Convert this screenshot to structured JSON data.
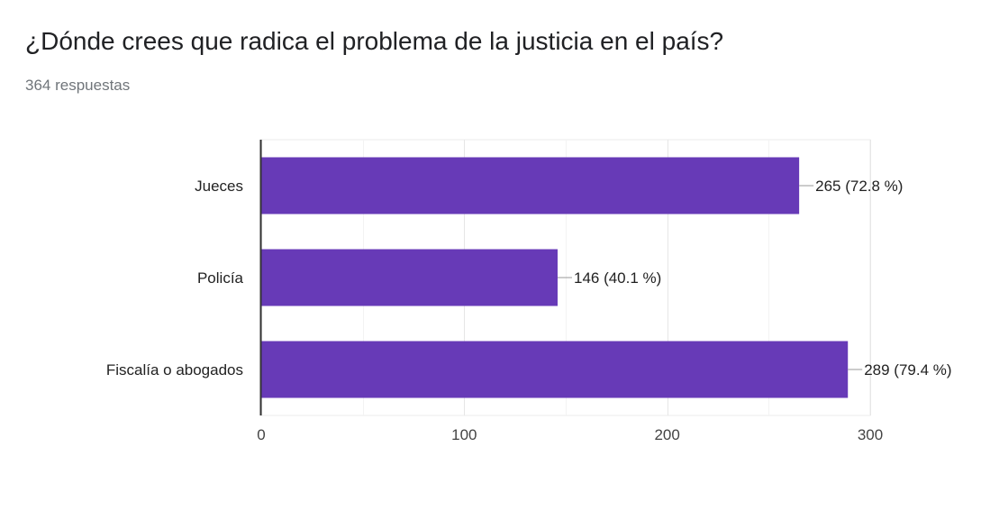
{
  "header": {
    "title": "¿Dónde crees que radica el problema de la justicia en el país?",
    "responses": "364 respuestas"
  },
  "colors": {
    "bar": "#673ab7",
    "grid": "#ebebeb",
    "axis": "#333333",
    "text": "#222222"
  },
  "chart_data": {
    "type": "bar",
    "orientation": "horizontal",
    "categories": [
      "Jueces",
      "Policía",
      "Fiscalía o abogados"
    ],
    "values": [
      265,
      146,
      289
    ],
    "value_labels": [
      "265 (72.8 %)",
      "146 (40.1 %)",
      "289 (79.4 %)"
    ],
    "xlim": [
      0,
      300
    ],
    "xticks": [
      0,
      100,
      200,
      300
    ],
    "grid": true
  }
}
